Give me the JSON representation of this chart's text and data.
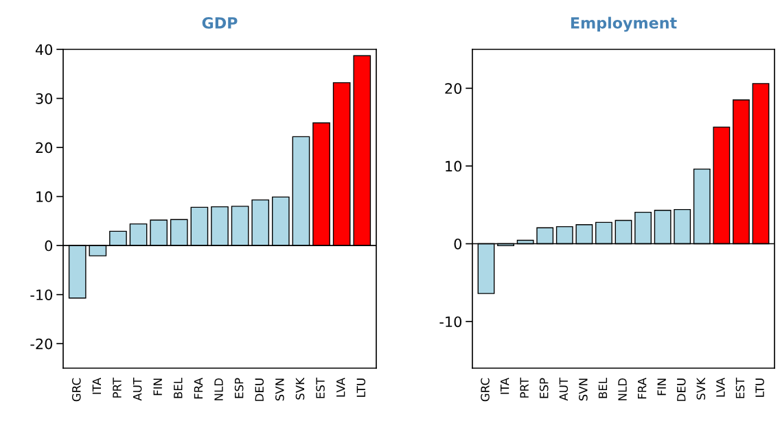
{
  "chart_data": [
    {
      "type": "bar",
      "title": "GDP",
      "categories": [
        "GRC",
        "ITA",
        "PRT",
        "AUT",
        "FIN",
        "BEL",
        "FRA",
        "NLD",
        "ESP",
        "DEU",
        "SVN",
        "SVK",
        "EST",
        "LVA",
        "LTU"
      ],
      "values": [
        -10.7,
        -2.1,
        2.9,
        4.4,
        5.2,
        5.3,
        7.8,
        7.9,
        8.0,
        9.3,
        9.9,
        22.2,
        25.0,
        33.2,
        38.7
      ],
      "colors": [
        "#add8e6",
        "#add8e6",
        "#add8e6",
        "#add8e6",
        "#add8e6",
        "#add8e6",
        "#add8e6",
        "#add8e6",
        "#add8e6",
        "#add8e6",
        "#add8e6",
        "#add8e6",
        "#ff0000",
        "#ff0000",
        "#ff0000"
      ],
      "ylim": [
        -25,
        40
      ],
      "yticks": [
        -20,
        -10,
        0,
        10,
        20,
        30,
        40
      ],
      "ref_lines": [
        {
          "axis": "y",
          "value": 0
        }
      ],
      "grid": false,
      "legend": false
    },
    {
      "type": "bar",
      "title": "Employment",
      "categories": [
        "GRC",
        "ITA",
        "PRT",
        "ESP",
        "AUT",
        "SVN",
        "BEL",
        "NLD",
        "FRA",
        "FIN",
        "DEU",
        "SVK",
        "LVA",
        "EST",
        "LTU"
      ],
      "values": [
        -6.4,
        -0.25,
        0.45,
        2.05,
        2.2,
        2.45,
        2.75,
        3.0,
        4.05,
        4.3,
        4.4,
        9.6,
        15.0,
        18.5,
        20.6
      ],
      "colors": [
        "#add8e6",
        "#add8e6",
        "#add8e6",
        "#add8e6",
        "#add8e6",
        "#add8e6",
        "#add8e6",
        "#add8e6",
        "#add8e6",
        "#add8e6",
        "#add8e6",
        "#add8e6",
        "#ff0000",
        "#ff0000",
        "#ff0000"
      ],
      "ylim": [
        -16,
        25
      ],
      "yticks": [
        -10,
        0,
        10,
        20
      ],
      "ref_lines": [
        {
          "axis": "y",
          "value": 0
        }
      ],
      "grid": false,
      "legend": false
    }
  ]
}
